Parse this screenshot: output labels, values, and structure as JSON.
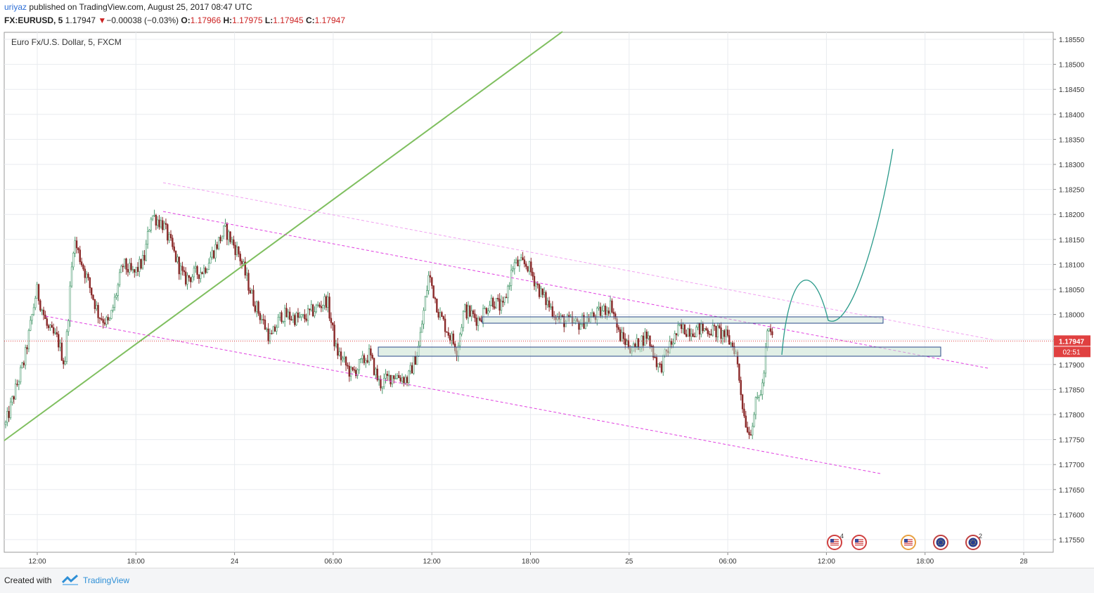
{
  "header": {
    "user": "uriyaz",
    "published": " published on TradingView.com, August 25, 2017 08:47 UTC",
    "symbol": "FX:EURUSD, 5",
    "last": "1.17947",
    "change_arrow": "▼",
    "change": "−0.00038 (−0.03%)",
    "open_label": "O:",
    "open": "1.17966",
    "high_label": "H:",
    "high": "1.17975",
    "low_label": "L:",
    "low": "1.17945",
    "close_label": "C:",
    "close": "1.17947"
  },
  "chart_data": {
    "type": "candlestick",
    "legend": "Euro Fx/U.S. Dollar, 5, FXCM",
    "y_ticks": [
      "1.18550",
      "1.18500",
      "1.18450",
      "1.18400",
      "1.18350",
      "1.18300",
      "1.18250",
      "1.18200",
      "1.18150",
      "1.18100",
      "1.18050",
      "1.18000",
      "1.17950",
      "1.17900",
      "1.17850",
      "1.17800",
      "1.17750",
      "1.17700",
      "1.17650",
      "1.17600",
      "1.17550"
    ],
    "x_ticks": [
      "12:00",
      "18:00",
      "24",
      "06:00",
      "12:00",
      "18:00",
      "25",
      "06:00",
      "12:00",
      "18:00",
      "28"
    ],
    "ylim": [
      1.1752,
      1.1858
    ],
    "current_price": "1.17947",
    "countdown": "02:51",
    "colors": {
      "up": "#4a9a6e",
      "down": "#8b2a2a",
      "price_line": "#e04040",
      "channel": "#e040e0",
      "trend": "#7fbf5f",
      "projection": "#2a9a8a"
    },
    "event_icons": [
      {
        "flag": "us",
        "count": "4"
      },
      {
        "flag": "us",
        "count": ""
      },
      {
        "flag": "us-circle",
        "count": ""
      },
      {
        "flag": "eu",
        "count": ""
      },
      {
        "flag": "eu",
        "count": "2"
      }
    ]
  },
  "footer": {
    "created": "Created with",
    "brand": "TradingView"
  }
}
